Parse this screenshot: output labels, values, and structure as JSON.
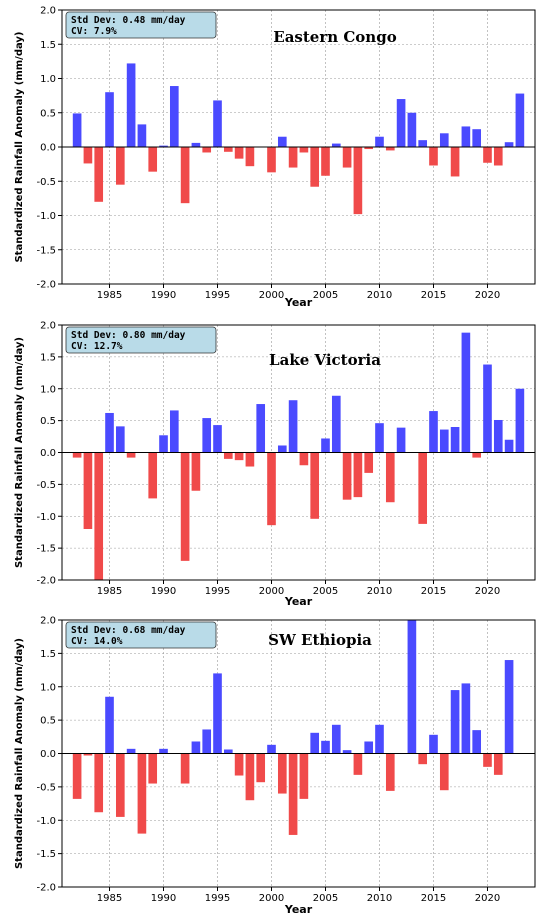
{
  "chart_data": [
    {
      "type": "bar",
      "title": "Eastern Congo",
      "stats": [
        "Std Dev: 0.48 mm/day",
        "CV: 7.9%"
      ],
      "xlabel": "Year",
      "ylabel": "Standardized Rainfall Anomaly (mm/day)",
      "ylim": [
        -2.0,
        2.0
      ],
      "xlim": [
        1980.6,
        2024.4
      ],
      "grid": true,
      "positive_color": "#4a4aff",
      "negative_color": "#f04a4a",
      "yticks": [
        "2.0",
        "1.5",
        "1.0",
        "0.5",
        "0.0",
        "-0.5",
        "-1.0",
        "-1.5",
        "-2.0"
      ],
      "xticks": [
        "1985",
        "1990",
        "1995",
        "2000",
        "2005",
        "2010",
        "2015",
        "2020"
      ],
      "x": [
        1982,
        1983,
        1984,
        1985,
        1986,
        1987,
        1988,
        1989,
        1990,
        1991,
        1992,
        1993,
        1994,
        1995,
        1996,
        1997,
        1998,
        1999,
        2000,
        2001,
        2002,
        2003,
        2004,
        2005,
        2006,
        2007,
        2008,
        2009,
        2010,
        2011,
        2012,
        2013,
        2014,
        2015,
        2016,
        2017,
        2018,
        2019,
        2020,
        2021,
        2022,
        2023
      ],
      "values": [
        0.49,
        -0.24,
        -0.8,
        0.8,
        -0.55,
        1.22,
        0.33,
        -0.36,
        0.02,
        0.89,
        -0.82,
        0.06,
        -0.08,
        0.68,
        -0.07,
        -0.17,
        -0.28,
        0.0,
        -0.37,
        0.15,
        -0.3,
        -0.08,
        -0.58,
        -0.42,
        0.05,
        -0.3,
        -0.98,
        -0.03,
        0.15,
        -0.05,
        0.7,
        0.5,
        0.1,
        -0.27,
        0.2,
        -0.43,
        0.3,
        0.26,
        -0.23,
        -0.27,
        0.07,
        0.78
      ]
    },
    {
      "type": "bar",
      "title": "Lake Victoria",
      "stats": [
        "Std Dev: 0.80 mm/day",
        "CV: 12.7%"
      ],
      "xlabel": "Year",
      "ylabel": "Standardized Rainfall Anomaly (mm/day)",
      "ylim": [
        -2.0,
        2.0
      ],
      "xlim": [
        1980.6,
        2024.4
      ],
      "grid": true,
      "positive_color": "#4a4aff",
      "negative_color": "#f04a4a",
      "yticks": [
        "2.0",
        "1.5",
        "1.0",
        "0.5",
        "0.0",
        "-0.5",
        "-1.0",
        "-1.5",
        "-2.0"
      ],
      "xticks": [
        "1985",
        "1990",
        "1995",
        "2000",
        "2005",
        "2010",
        "2015",
        "2020"
      ],
      "x": [
        1982,
        1983,
        1984,
        1985,
        1986,
        1987,
        1988,
        1989,
        1990,
        1991,
        1992,
        1993,
        1994,
        1995,
        1996,
        1997,
        1998,
        1999,
        2000,
        2001,
        2002,
        2003,
        2004,
        2005,
        2006,
        2007,
        2008,
        2009,
        2010,
        2011,
        2012,
        2013,
        2014,
        2015,
        2016,
        2017,
        2018,
        2019,
        2020,
        2021,
        2022,
        2023
      ],
      "values": [
        -0.08,
        -1.2,
        -2.0,
        0.62,
        0.41,
        -0.08,
        0.0,
        -0.72,
        0.27,
        0.66,
        -1.7,
        -0.6,
        0.54,
        0.43,
        -0.1,
        -0.12,
        -0.22,
        0.76,
        -1.14,
        0.11,
        0.82,
        -0.2,
        -1.04,
        0.22,
        0.89,
        -0.74,
        -0.7,
        -0.32,
        0.46,
        -0.78,
        0.39,
        0.0,
        -1.12,
        0.65,
        0.36,
        0.4,
        1.88,
        -0.08,
        1.38,
        0.51,
        0.2,
        1.0
      ]
    },
    {
      "type": "bar",
      "title": "SW Ethiopia",
      "stats": [
        "Std Dev: 0.68 mm/day",
        "CV: 14.0%"
      ],
      "xlabel": "Year",
      "ylabel": "Standardized Rainfall Anomaly (mm/day)",
      "ylim": [
        -2.0,
        2.0
      ],
      "xlim": [
        1980.6,
        2024.4
      ],
      "grid": true,
      "positive_color": "#4a4aff",
      "negative_color": "#f04a4a",
      "yticks": [
        "2.0",
        "1.5",
        "1.0",
        "0.5",
        "0.0",
        "-0.5",
        "-1.0",
        "-1.5",
        "-2.0"
      ],
      "xticks": [
        "1985",
        "1990",
        "1995",
        "2000",
        "2005",
        "2010",
        "2015",
        "2020"
      ],
      "x": [
        1982,
        1983,
        1984,
        1985,
        1986,
        1987,
        1988,
        1989,
        1990,
        1991,
        1992,
        1993,
        1994,
        1995,
        1996,
        1997,
        1998,
        1999,
        2000,
        2001,
        2002,
        2003,
        2004,
        2005,
        2006,
        2007,
        2008,
        2009,
        2010,
        2011,
        2012,
        2013,
        2014,
        2015,
        2016,
        2017,
        2018,
        2019,
        2020,
        2021,
        2022,
        2023
      ],
      "values": [
        -0.68,
        -0.03,
        -0.88,
        0.85,
        -0.95,
        0.07,
        -1.2,
        -0.45,
        0.07,
        0.0,
        -0.45,
        0.18,
        0.36,
        1.2,
        0.06,
        -0.33,
        -0.7,
        -0.43,
        0.13,
        -0.6,
        -1.22,
        -0.68,
        0.31,
        0.19,
        0.43,
        0.05,
        -0.32,
        0.18,
        0.43,
        -0.56,
        0.0,
        2.0,
        -0.16,
        0.28,
        -0.55,
        0.95,
        1.05,
        0.35,
        -0.2,
        -0.32,
        1.4,
        0.0
      ]
    }
  ]
}
